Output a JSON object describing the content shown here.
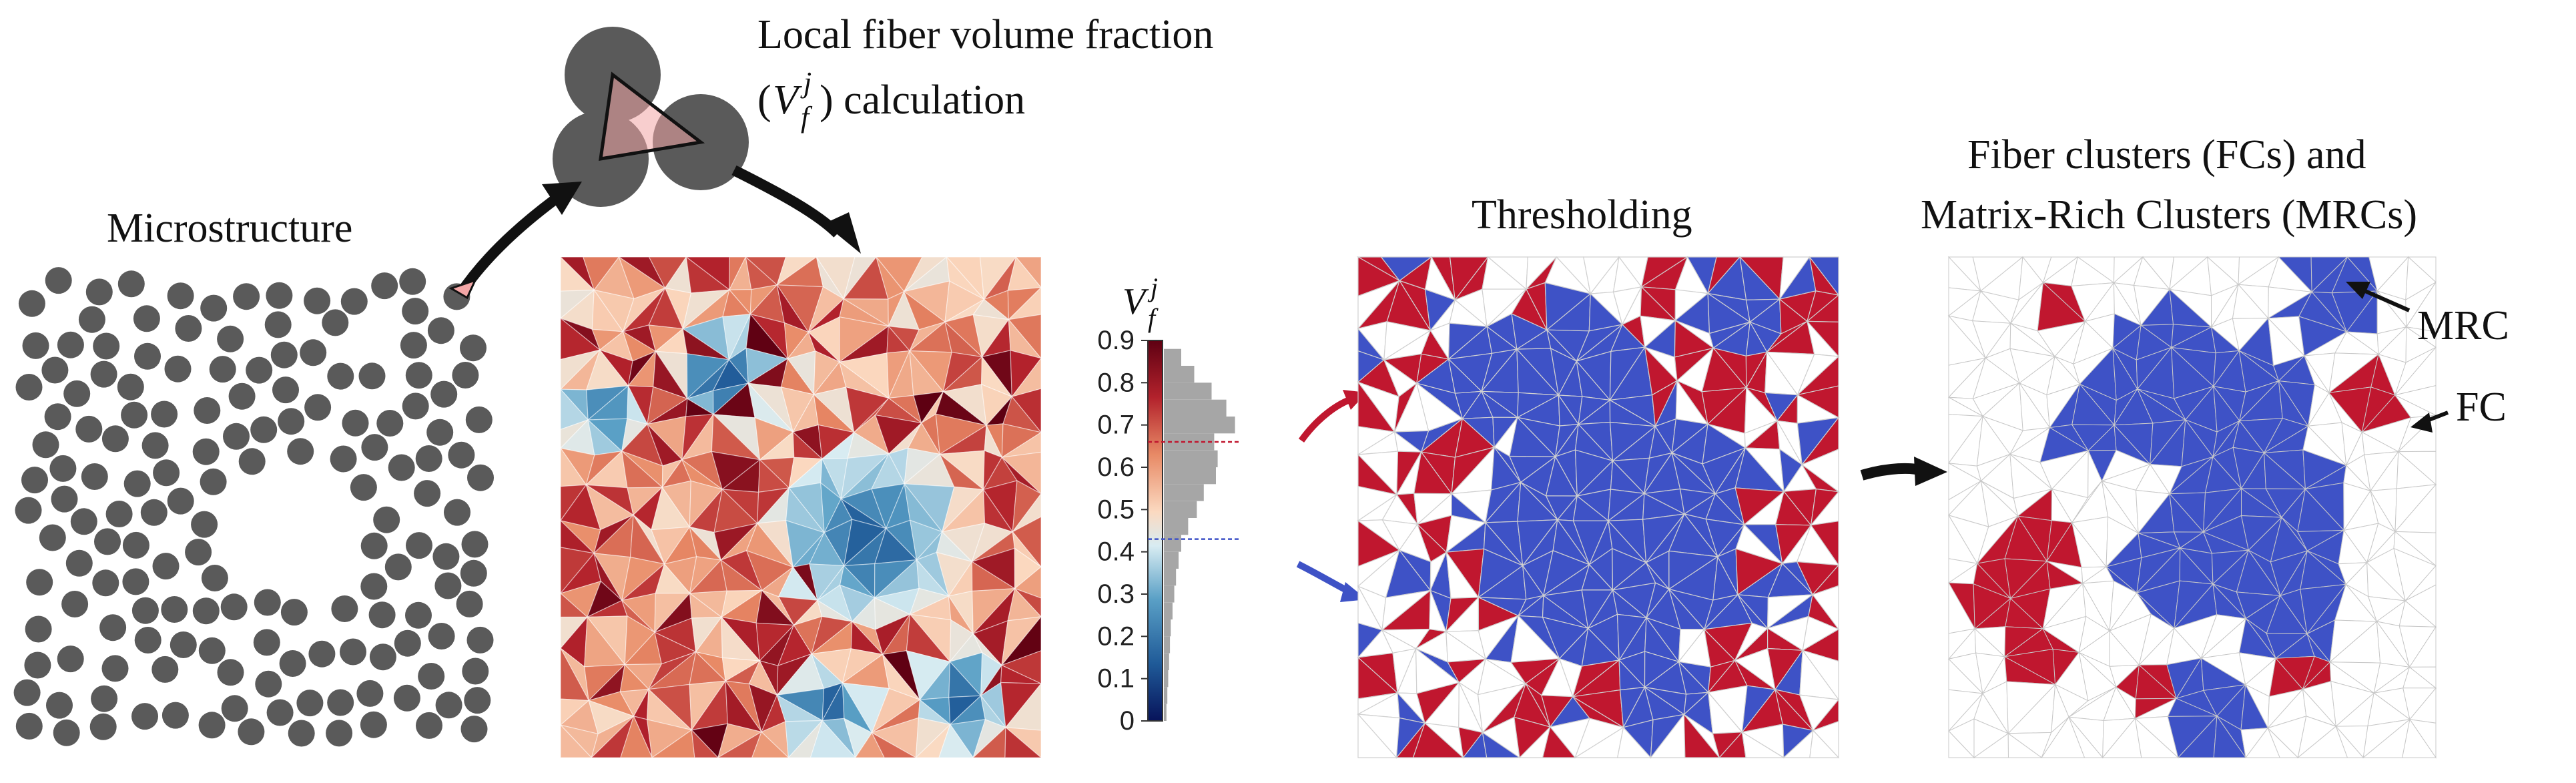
{
  "labels": {
    "microstructure": "Microstructure",
    "calc_line1": "Local fiber volume fraction",
    "calc_line2_prefix": "(",
    "calc_line2_suffix": ") calculation",
    "thresholding": "Thresholding",
    "clusters_line1": "Fiber clusters (FCs) and",
    "clusters_line2": "Matrix-Rich Clusters (MRCs)",
    "mrc": "MRC",
    "fc": "FC"
  },
  "symbol": {
    "base": "V",
    "sub": "f",
    "sup": "j"
  },
  "colorbar": {
    "ticks": [
      "0.9",
      "0.8",
      "0.7",
      "0.6",
      "0.5",
      "0.4",
      "0.3",
      "0.2",
      "0.1",
      "0"
    ]
  },
  "histogram": {
    "type": "bar",
    "categories": [
      0.02,
      0.06,
      0.1,
      0.14,
      0.18,
      0.22,
      0.26,
      0.3,
      0.34,
      0.38,
      0.42,
      0.46,
      0.5,
      0.54,
      0.58,
      0.62,
      0.66,
      0.7,
      0.74,
      0.78,
      0.82,
      0.86
    ],
    "values": [
      3,
      4,
      5,
      6,
      7,
      8,
      10,
      12,
      14,
      17,
      20,
      28,
      38,
      46,
      60,
      62,
      58,
      82,
      72,
      55,
      35,
      20
    ],
    "ylim": [
      0,
      0.9
    ]
  },
  "thresholds": {
    "upper": 0.66,
    "lower": 0.43
  },
  "colors": {
    "fc": "#c0172f",
    "mrc": "#3e52c6",
    "fiber": "#5a5a5a",
    "dark_blue": "#0c2a6b",
    "dark_red": "#670010"
  }
}
